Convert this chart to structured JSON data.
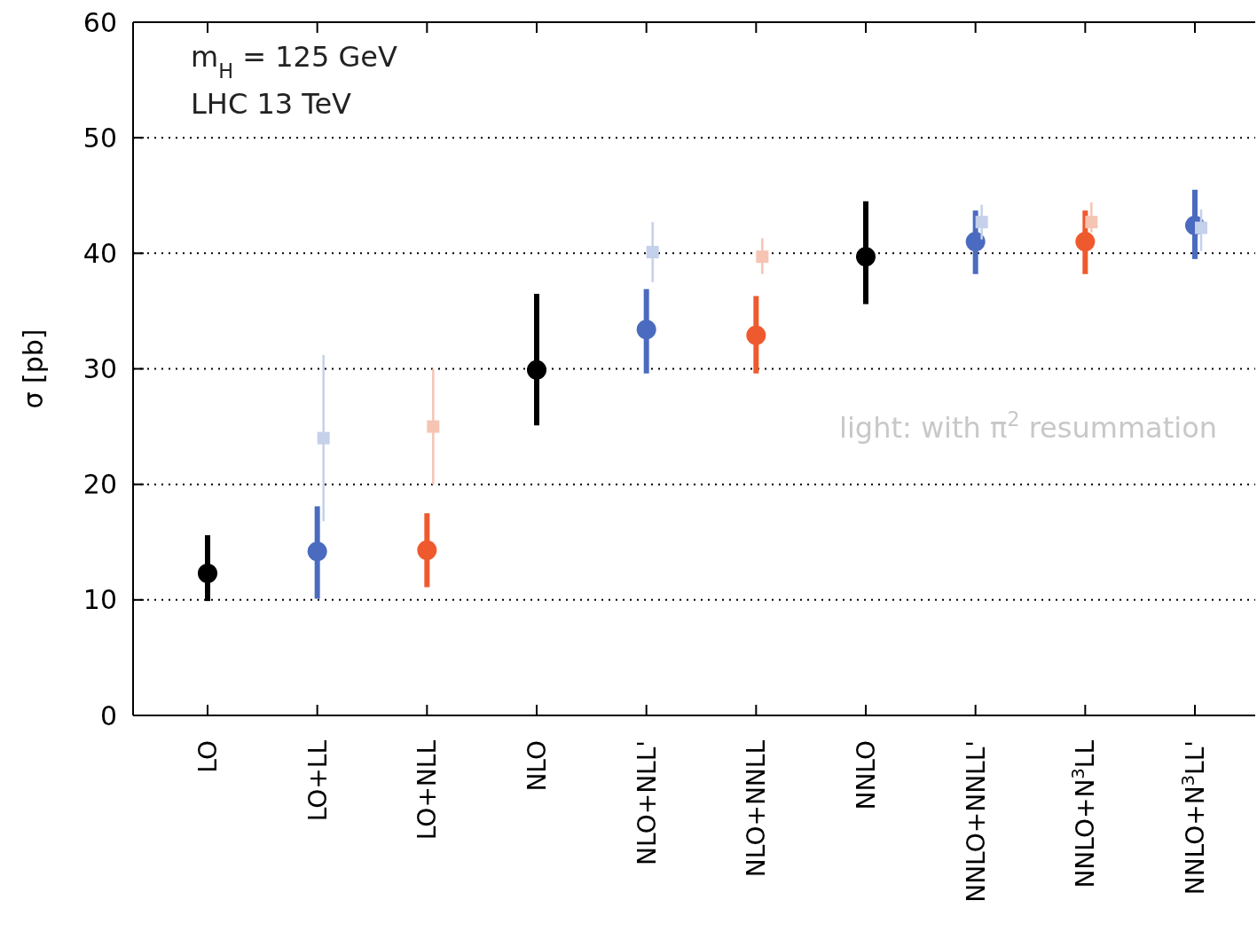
{
  "chart_data": {
    "type": "scatter",
    "ylabel": "σ [pb]",
    "categories": [
      "LO",
      "LO+LL",
      "LO+NLL",
      "NLO",
      "NLO+NLL'",
      "NLO+NNLL",
      "NNLO",
      "NNLO+NNLL'",
      "NNLO+N$^{3}$LL",
      "NNLO+N$^{3}$LL'"
    ],
    "ylim": [
      0,
      60
    ],
    "yticks": [
      0,
      10,
      20,
      30,
      40,
      50,
      60
    ],
    "grid": "y",
    "annotations": [
      "m$_{H}$ = 125 GeV",
      "LHC 13 TeV",
      "light: with π$^{2}$ resummation"
    ],
    "series": [
      {
        "color": "#000000",
        "marker": "circle",
        "values": [
          12.3,
          null,
          null,
          29.9,
          null,
          null,
          39.7,
          null,
          null,
          null
        ],
        "errors": [
          [
            9.9,
            15.6
          ],
          null,
          null,
          [
            25.1,
            36.5
          ],
          null,
          null,
          [
            35.6,
            44.5
          ],
          null,
          null,
          null
        ]
      },
      {
        "color": "#4a6bbf",
        "marker": "circle",
        "values": [
          null,
          14.2,
          null,
          null,
          33.4,
          null,
          null,
          41.0,
          null,
          42.4
        ],
        "errors": [
          null,
          [
            10.1,
            18.1
          ],
          null,
          null,
          [
            29.6,
            36.9
          ],
          null,
          null,
          [
            38.2,
            43.7
          ],
          null,
          [
            39.5,
            45.5
          ]
        ]
      },
      {
        "color": "#ee5a2e",
        "marker": "circle",
        "values": [
          null,
          null,
          14.3,
          null,
          null,
          32.9,
          null,
          null,
          41.0,
          null
        ],
        "errors": [
          null,
          null,
          [
            11.1,
            17.5
          ],
          null,
          null,
          [
            29.6,
            36.3
          ],
          null,
          null,
          [
            38.2,
            43.7
          ],
          null
        ]
      },
      {
        "color": "#c5d0ea",
        "marker": "square",
        "values": [
          null,
          24.0,
          null,
          null,
          40.1,
          null,
          null,
          42.7,
          null,
          42.2
        ],
        "errors": [
          null,
          [
            16.8,
            31.2
          ],
          null,
          null,
          [
            37.5,
            42.7
          ],
          null,
          null,
          [
            41.2,
            44.2
          ],
          null,
          [
            40.2,
            43.8
          ]
        ]
      },
      {
        "color": "#f6c4b3",
        "marker": "square",
        "values": [
          null,
          null,
          25.0,
          null,
          null,
          39.7,
          null,
          null,
          42.7,
          null
        ],
        "errors": [
          null,
          null,
          [
            20.0,
            30.0
          ],
          null,
          null,
          [
            38.2,
            41.3
          ],
          null,
          null,
          [
            41.8,
            44.4
          ],
          null
        ]
      }
    ]
  }
}
